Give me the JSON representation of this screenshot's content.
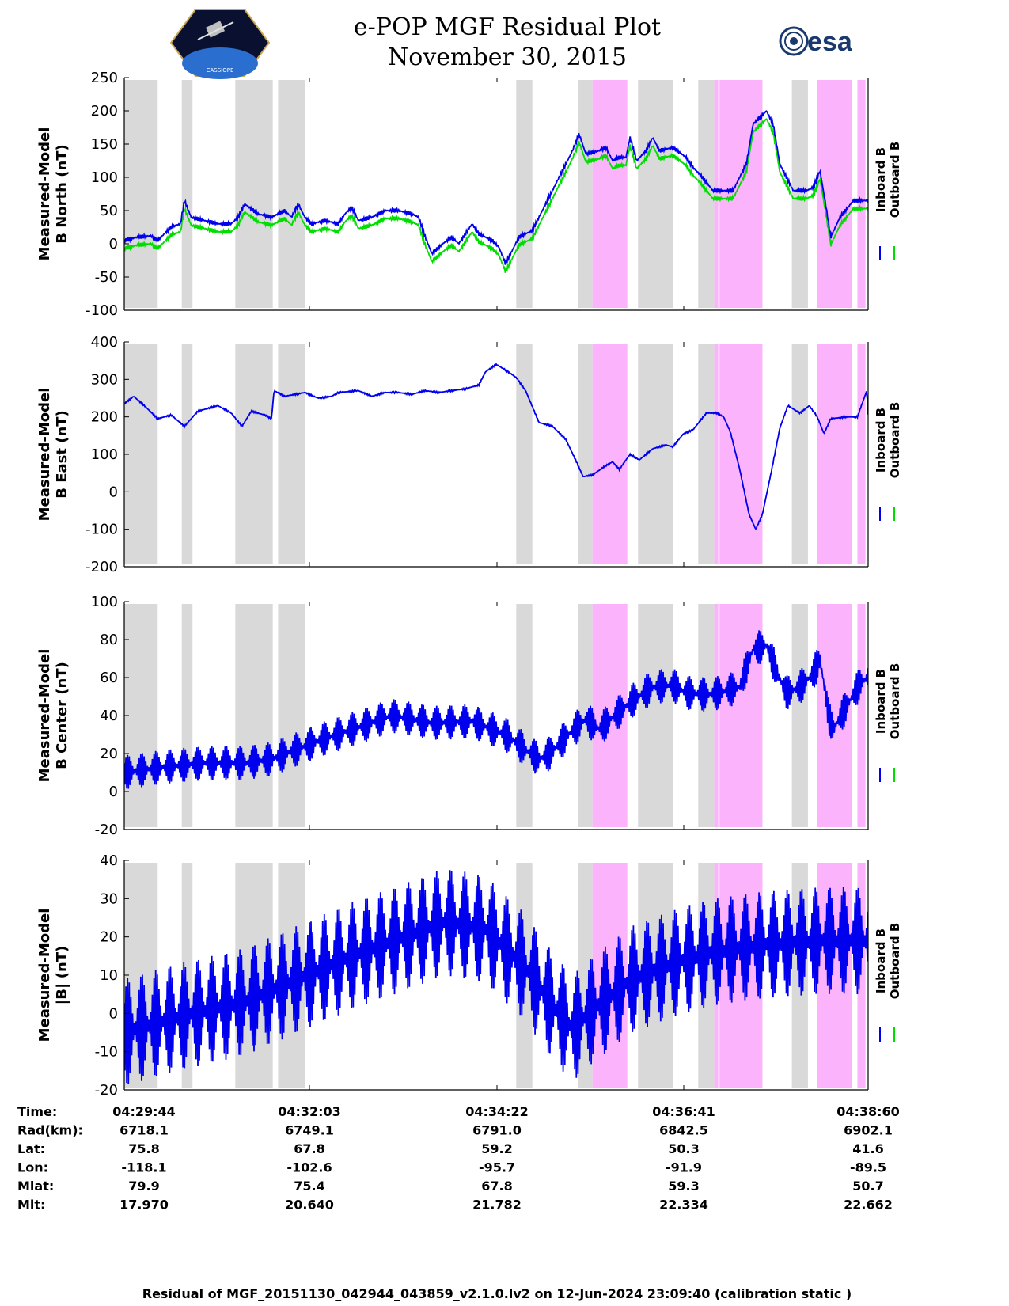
{
  "header": {
    "title": "e-POP MGF Residual Plot",
    "date": "November 30, 2015",
    "left_logo": "CASSIOPE",
    "right_logo": "esa"
  },
  "colors": {
    "inboard": "#0000ee",
    "outboard": "#00dd00",
    "gray_shade": "#d9d9d9",
    "pink_shade": "#fbb3fb"
  },
  "chart_data": {
    "type": "line",
    "x_ticks": [
      "04:29:44",
      "04:32:03",
      "04:34:22",
      "04:36:41",
      "04:38:60"
    ],
    "x_range_sec": [
      0,
      556
    ],
    "gray_intervals_sec": [
      [
        0,
        25
      ],
      [
        43,
        51
      ],
      [
        83,
        111
      ],
      [
        115,
        135
      ],
      [
        293,
        305
      ],
      [
        339,
        350
      ],
      [
        384,
        410
      ],
      [
        429,
        441
      ],
      [
        445,
        477
      ],
      [
        499,
        511
      ]
    ],
    "pink_intervals_sec": [
      [
        350,
        376
      ],
      [
        441,
        444
      ],
      [
        445,
        477
      ],
      [
        518,
        544
      ],
      [
        548,
        554
      ]
    ],
    "legend": [
      "Inboard B",
      "Outboard B"
    ],
    "panels": [
      {
        "id": "b-north",
        "ylabel": [
          "Measured-Model",
          "B North (nT)"
        ],
        "ylim": [
          -100,
          250
        ],
        "yticks": [
          250,
          200,
          150,
          100,
          50,
          0,
          -50,
          -100
        ],
        "ripple": 3,
        "series": [
          {
            "name": "Inboard B",
            "color": "#0000ee",
            "offset": 0
          },
          {
            "name": "Outboard B",
            "color": "#00dd00",
            "offset": -12
          }
        ],
        "points": [
          [
            0,
            5
          ],
          [
            10,
            10
          ],
          [
            20,
            12
          ],
          [
            25,
            5
          ],
          [
            35,
            25
          ],
          [
            42,
            30
          ],
          [
            45,
            65
          ],
          [
            50,
            40
          ],
          [
            60,
            35
          ],
          [
            70,
            30
          ],
          [
            80,
            30
          ],
          [
            85,
            40
          ],
          [
            90,
            60
          ],
          [
            100,
            45
          ],
          [
            110,
            40
          ],
          [
            120,
            50
          ],
          [
            125,
            40
          ],
          [
            130,
            60
          ],
          [
            135,
            40
          ],
          [
            140,
            30
          ],
          [
            150,
            35
          ],
          [
            160,
            30
          ],
          [
            165,
            45
          ],
          [
            170,
            55
          ],
          [
            175,
            35
          ],
          [
            185,
            40
          ],
          [
            195,
            50
          ],
          [
            205,
            50
          ],
          [
            215,
            45
          ],
          [
            220,
            40
          ],
          [
            225,
            10
          ],
          [
            230,
            -15
          ],
          [
            238,
            0
          ],
          [
            245,
            10
          ],
          [
            250,
            0
          ],
          [
            260,
            30
          ],
          [
            265,
            15
          ],
          [
            275,
            5
          ],
          [
            280,
            -5
          ],
          [
            285,
            -30
          ],
          [
            290,
            -10
          ],
          [
            295,
            10
          ],
          [
            305,
            20
          ],
          [
            315,
            60
          ],
          [
            325,
            100
          ],
          [
            335,
            140
          ],
          [
            340,
            165
          ],
          [
            345,
            135
          ],
          [
            355,
            140
          ],
          [
            360,
            145
          ],
          [
            365,
            125
          ],
          [
            370,
            130
          ],
          [
            375,
            130
          ],
          [
            378,
            160
          ],
          [
            383,
            125
          ],
          [
            390,
            140
          ],
          [
            395,
            160
          ],
          [
            400,
            140
          ],
          [
            410,
            145
          ],
          [
            420,
            130
          ],
          [
            425,
            115
          ],
          [
            430,
            105
          ],
          [
            440,
            80
          ],
          [
            455,
            80
          ],
          [
            465,
            120
          ],
          [
            470,
            180
          ],
          [
            480,
            200
          ],
          [
            485,
            180
          ],
          [
            490,
            120
          ],
          [
            500,
            80
          ],
          [
            510,
            80
          ],
          [
            515,
            85
          ],
          [
            520,
            110
          ],
          [
            525,
            50
          ],
          [
            528,
            10
          ],
          [
            535,
            40
          ],
          [
            545,
            65
          ],
          [
            556,
            65
          ]
        ]
      },
      {
        "id": "b-east",
        "ylabel": [
          "Measured-Model",
          "B East (nT)"
        ],
        "ylim": [
          -200,
          400
        ],
        "yticks": [
          400,
          300,
          200,
          100,
          0,
          -100,
          -200
        ],
        "ripple": 2,
        "series": [
          {
            "name": "Inboard B",
            "color": "#0000ee",
            "offset": 0
          }
        ],
        "points": [
          [
            0,
            235
          ],
          [
            7,
            255
          ],
          [
            15,
            230
          ],
          [
            25,
            195
          ],
          [
            35,
            205
          ],
          [
            45,
            175
          ],
          [
            55,
            215
          ],
          [
            65,
            225
          ],
          [
            70,
            230
          ],
          [
            80,
            210
          ],
          [
            88,
            175
          ],
          [
            95,
            215
          ],
          [
            105,
            205
          ],
          [
            110,
            195
          ],
          [
            112,
            270
          ],
          [
            120,
            255
          ],
          [
            135,
            265
          ],
          [
            145,
            250
          ],
          [
            155,
            255
          ],
          [
            160,
            265
          ],
          [
            175,
            270
          ],
          [
            185,
            255
          ],
          [
            195,
            265
          ],
          [
            205,
            265
          ],
          [
            215,
            260
          ],
          [
            225,
            270
          ],
          [
            235,
            265
          ],
          [
            245,
            270
          ],
          [
            255,
            275
          ],
          [
            265,
            285
          ],
          [
            270,
            320
          ],
          [
            278,
            340
          ],
          [
            285,
            325
          ],
          [
            293,
            305
          ],
          [
            300,
            270
          ],
          [
            310,
            185
          ],
          [
            320,
            175
          ],
          [
            330,
            140
          ],
          [
            338,
            80
          ],
          [
            343,
            40
          ],
          [
            350,
            45
          ],
          [
            360,
            70
          ],
          [
            365,
            80
          ],
          [
            370,
            60
          ],
          [
            378,
            100
          ],
          [
            385,
            85
          ],
          [
            395,
            115
          ],
          [
            405,
            125
          ],
          [
            410,
            120
          ],
          [
            418,
            155
          ],
          [
            425,
            165
          ],
          [
            435,
            210
          ],
          [
            443,
            210
          ],
          [
            448,
            200
          ],
          [
            453,
            160
          ],
          [
            460,
            60
          ],
          [
            467,
            -60
          ],
          [
            472,
            -100
          ],
          [
            477,
            -60
          ],
          [
            484,
            60
          ],
          [
            490,
            170
          ],
          [
            496,
            230
          ],
          [
            505,
            210
          ],
          [
            512,
            230
          ],
          [
            518,
            200
          ],
          [
            523,
            155
          ],
          [
            528,
            195
          ],
          [
            540,
            200
          ],
          [
            548,
            200
          ],
          [
            555,
            270
          ],
          [
            556,
            205
          ]
        ]
      },
      {
        "id": "b-center",
        "ylabel": [
          "Measured-Model",
          "B Center (nT)"
        ],
        "ylim": [
          -20,
          100
        ],
        "yticks": [
          100,
          80,
          60,
          40,
          20,
          0,
          -20
        ],
        "ripple": 9,
        "series": [
          {
            "name": "Inboard B",
            "color": "#0000ee",
            "offset": 0
          }
        ],
        "points": [
          [
            0,
            10
          ],
          [
            30,
            13
          ],
          [
            60,
            15
          ],
          [
            90,
            15
          ],
          [
            110,
            17
          ],
          [
            150,
            28
          ],
          [
            180,
            35
          ],
          [
            200,
            40
          ],
          [
            230,
            36
          ],
          [
            260,
            37
          ],
          [
            285,
            30
          ],
          [
            300,
            22
          ],
          [
            310,
            17
          ],
          [
            318,
            20
          ],
          [
            335,
            32
          ],
          [
            345,
            38
          ],
          [
            355,
            33
          ],
          [
            370,
            42
          ],
          [
            380,
            48
          ],
          [
            395,
            55
          ],
          [
            410,
            56
          ],
          [
            420,
            52
          ],
          [
            435,
            51
          ],
          [
            445,
            52
          ],
          [
            460,
            55
          ],
          [
            470,
            75
          ],
          [
            480,
            77
          ],
          [
            490,
            59
          ],
          [
            495,
            52
          ],
          [
            505,
            55
          ],
          [
            515,
            62
          ],
          [
            520,
            70
          ],
          [
            527,
            38
          ],
          [
            530,
            33
          ],
          [
            540,
            45
          ],
          [
            550,
            57
          ],
          [
            556,
            60
          ]
        ]
      },
      {
        "id": "b-total",
        "ylabel": [
          "Measured-Model",
          "|B| (nT)"
        ],
        "ylim": [
          -20,
          40
        ],
        "yticks": [
          40,
          30,
          20,
          10,
          0,
          -10,
          -20
        ],
        "ripple": 14,
        "series": [
          {
            "name": "Inboard B",
            "color": "#0000ee",
            "offset": 0
          }
        ],
        "points": [
          [
            0,
            -5
          ],
          [
            40,
            -1
          ],
          [
            90,
            3
          ],
          [
            130,
            9
          ],
          [
            170,
            15
          ],
          [
            210,
            20
          ],
          [
            240,
            24
          ],
          [
            270,
            22
          ],
          [
            300,
            12
          ],
          [
            320,
            2
          ],
          [
            335,
            -4
          ],
          [
            350,
            1
          ],
          [
            380,
            9
          ],
          [
            410,
            13
          ],
          [
            440,
            16
          ],
          [
            480,
            18
          ],
          [
            520,
            19
          ],
          [
            556,
            19
          ]
        ]
      }
    ]
  },
  "info_rows": [
    {
      "label": "Time:",
      "values": [
        "04:29:44",
        "04:32:03",
        "04:34:22",
        "04:36:41",
        "04:38:60"
      ]
    },
    {
      "label": "Rad(km):",
      "values": [
        "6718.1",
        "6749.1",
        "6791.0",
        "6842.5",
        "6902.1"
      ]
    },
    {
      "label": "Lat:",
      "values": [
        "75.8",
        "67.8",
        "59.2",
        "50.3",
        "41.6"
      ]
    },
    {
      "label": "Lon:",
      "values": [
        "-118.1",
        "-102.6",
        "-95.7",
        "-91.9",
        "-89.5"
      ]
    },
    {
      "label": "Mlat:",
      "values": [
        "79.9",
        "75.4",
        "67.8",
        "59.3",
        "50.7"
      ]
    },
    {
      "label": "Mlt:",
      "values": [
        "17.970",
        "20.640",
        "21.782",
        "22.334",
        "22.662"
      ]
    }
  ],
  "footer": "Residual of MGF_20151130_042944_043859_v2.1.0.lv2 on 12-Jun-2024 23:09:40 (calibration static )"
}
